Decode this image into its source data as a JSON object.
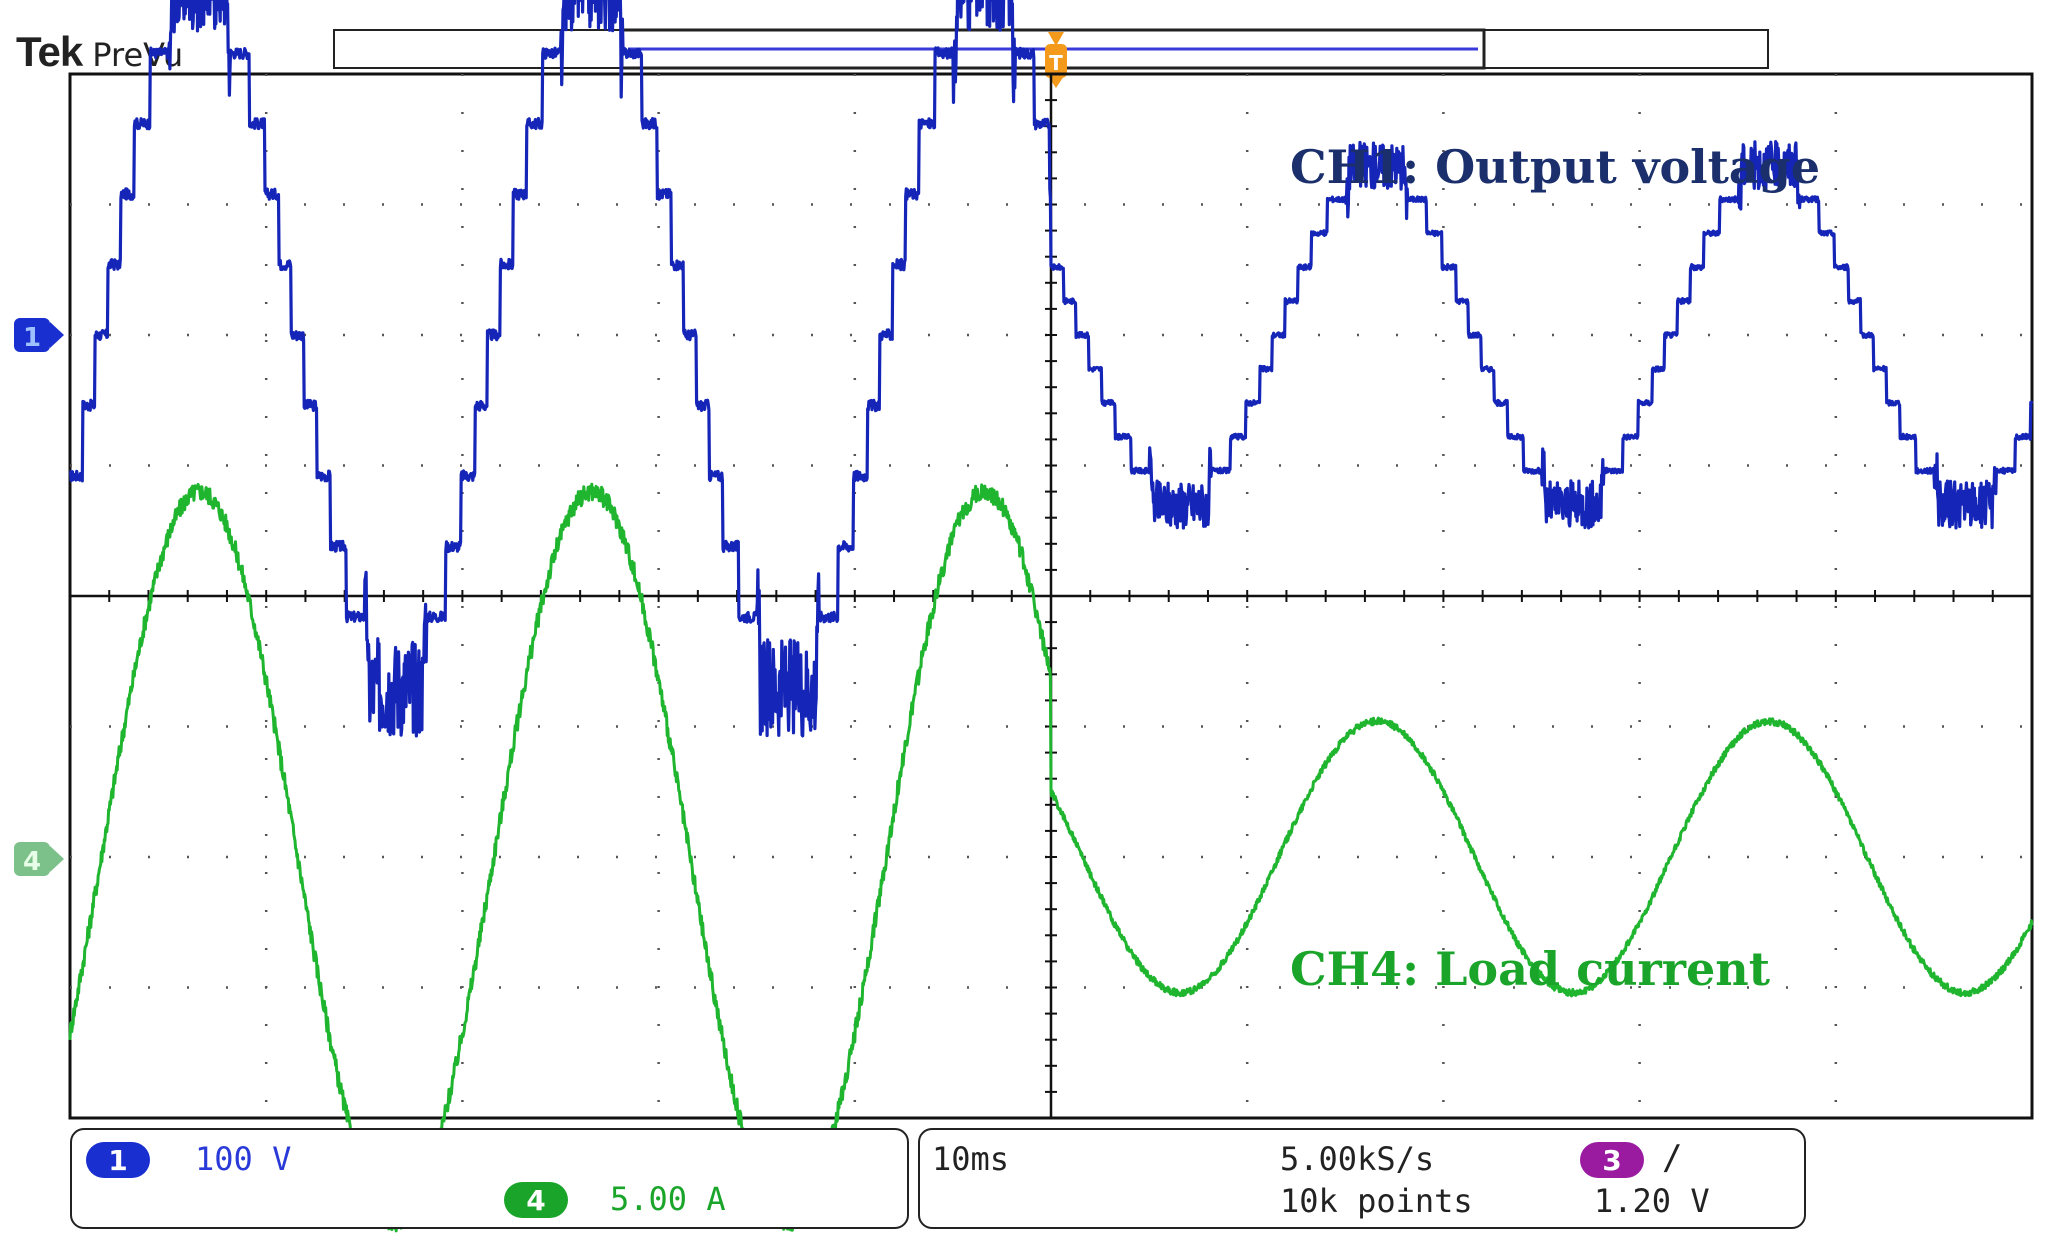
{
  "header": {
    "brand": "Tek",
    "mode": "PreVu"
  },
  "annotations": {
    "ch1": "CH1: Output voltage",
    "ch4": "CH4: Load current"
  },
  "channels": [
    {
      "id": "1",
      "scale": "100 V",
      "color": "#1a2fd0",
      "trace_color": "#1525b8"
    },
    {
      "id": "4",
      "scale": "5.00 A",
      "color": "#1aa52a",
      "trace_color": "#1fb52f"
    }
  ],
  "timebase": {
    "time_div": "10ms",
    "sample_rate": "5.00kS/s",
    "record_length": "10k points"
  },
  "trigger": {
    "source": "3",
    "color": "#9a1aa0",
    "slope_icon": "rising-edge-icon",
    "slope_symbol": "∕",
    "level": "1.20 V"
  },
  "chart_data": {
    "type": "line",
    "title": "",
    "grid": true,
    "x_unit": "ms",
    "xlim": [
      0,
      100
    ],
    "x_divisions": 10,
    "y_divisions": 8,
    "step_change_at_ms": 50,
    "series": [
      {
        "name": "CH1: Output voltage",
        "channel": 1,
        "unit": "V",
        "volts_per_div": 100,
        "frequency_hz": 50,
        "waveform": "multilevel-staircase",
        "amplitude_before": 270,
        "amplitude_after": 130,
        "levels": 5,
        "offset_div": 2.0
      },
      {
        "name": "CH4: Load current",
        "channel": 4,
        "unit": "A",
        "amps_per_div": 5,
        "frequency_hz": 50,
        "waveform": "sine",
        "amplitude_before": 14,
        "amplitude_after": 5.2,
        "offset_div": -2.0
      }
    ]
  }
}
